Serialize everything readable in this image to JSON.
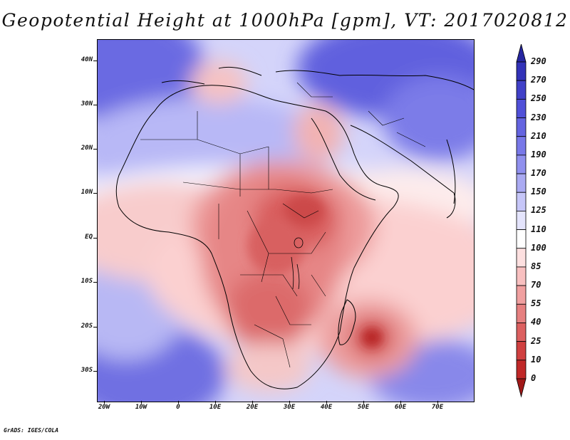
{
  "title": "Geopotential Height at 1000hPa [gpm], VT: 2017020812",
  "footer": "GrADS: IGES/COLA",
  "map": {
    "variable": "Geopotential Height at 1000hPa",
    "units": "gpm",
    "valid_time": "2017020812",
    "lon_range": [
      -22,
      80
    ],
    "lat_range": [
      -37,
      45
    ],
    "lat_labels": [
      "40N",
      "30N",
      "20N",
      "10N",
      "EQ",
      "10S",
      "20S",
      "30S"
    ],
    "lon_labels": [
      "20W",
      "10W",
      "0",
      "10E",
      "20E",
      "30E",
      "40E",
      "50E",
      "60E",
      "70E"
    ]
  },
  "colorbar": {
    "levels": [
      "290",
      "270",
      "250",
      "230",
      "210",
      "190",
      "170",
      "150",
      "125",
      "110",
      "100",
      "85",
      "70",
      "55",
      "40",
      "25",
      "10",
      "0"
    ],
    "colors": [
      "#2626a0",
      "#3232b8",
      "#4040c8",
      "#5050d8",
      "#6464e0",
      "#7878e8",
      "#9090ee",
      "#aaaaf2",
      "#c6c6f8",
      "#e4e4fc",
      "#ffffff",
      "#fde0e0",
      "#f8c0c0",
      "#f0a0a0",
      "#e68080",
      "#dc6060",
      "#d04040",
      "#c02828",
      "#a01818"
    ]
  }
}
